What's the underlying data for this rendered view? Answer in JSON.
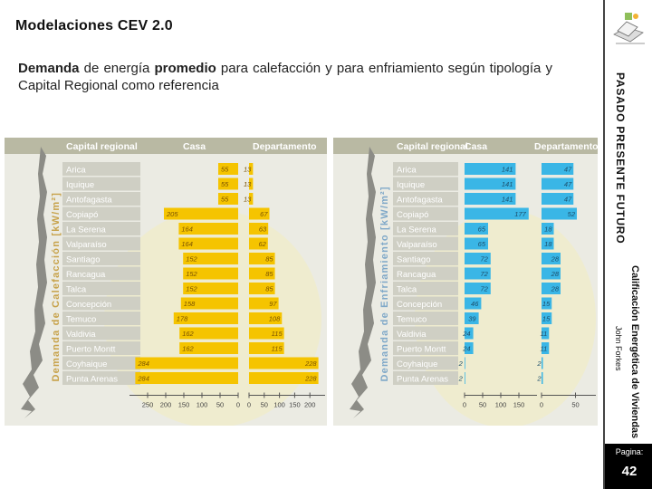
{
  "slide": {
    "title": "Modelaciones CEV 2.0",
    "subtitle_parts": [
      {
        "text": "Demanda",
        "bold": true
      },
      {
        "text": " de energía ",
        "bold": false
      },
      {
        "text": "promedio",
        "bold": true
      },
      {
        "text": " para calefacción y para enfriamiento según tipología  y Capital Regional como referencia",
        "bold": false
      }
    ]
  },
  "sidebar": {
    "nav_items": [
      "PASADO",
      "PRESENTE",
      "FUTURO"
    ],
    "footer_title": "Calificación Energética de Viviendas",
    "author": "John Forkes",
    "page_label": "Pagina:",
    "page_number": "42"
  },
  "colors": {
    "heating_bar": "#f5c400",
    "cooling_bar": "#3ab6e6",
    "header_bg": "#b9b9a3",
    "panel_bg": "#ebebe3",
    "axis_label": "#c7a24a",
    "cooling_axis_label": "#7fa8c8"
  },
  "chart_data": [
    {
      "type": "bar",
      "title": "",
      "ylabel": "Demanda de Calefacción [kW/m²]",
      "column_headers": [
        "Capital regional",
        "Casa",
        "Departamento"
      ],
      "categories": [
        "Arica",
        "Iquique",
        "Antofagasta",
        "Copiapó",
        "La Serena",
        "Valparaíso",
        "Santiago",
        "Rancagua",
        "Talca",
        "Concepción",
        "Temuco",
        "Valdivia",
        "Puerto Montt",
        "Coyhaique",
        "Punta Arenas"
      ],
      "series": [
        {
          "name": "Casa",
          "values": [
            55,
            55,
            55,
            205,
            164,
            164,
            152,
            152,
            152,
            158,
            178,
            162,
            162,
            284,
            284
          ]
        },
        {
          "name": "Departamento",
          "values": [
            13,
            13,
            13,
            67,
            63,
            62,
            85,
            85,
            85,
            97,
            108,
            115,
            115,
            228,
            228
          ]
        }
      ],
      "casa_axis_ticks": [
        250,
        200,
        150,
        100,
        50,
        0
      ],
      "depto_axis_ticks": [
        0,
        50,
        100,
        150,
        200
      ],
      "casa_xlim": [
        300,
        0
      ],
      "depto_xlim": [
        0,
        250
      ]
    },
    {
      "type": "bar",
      "title": "",
      "ylabel": "Demanda de Enfriamiento [kW/m²]",
      "column_headers": [
        "Capital regional",
        "Casa",
        "Departamento"
      ],
      "categories": [
        "Arica",
        "Iquique",
        "Antofagasta",
        "Copiapó",
        "La Serena",
        "Valparaíso",
        "Santiago",
        "Rancagua",
        "Talca",
        "Concepción",
        "Temuco",
        "Valdivia",
        "Puerto Montt",
        "Coyhaique",
        "Punta Arenas"
      ],
      "series": [
        {
          "name": "Casa",
          "values": [
            141,
            141,
            141,
            177,
            65,
            65,
            72,
            72,
            72,
            46,
            39,
            24,
            24,
            2,
            2
          ]
        },
        {
          "name": "Departamento",
          "values": [
            47,
            47,
            47,
            52,
            18,
            18,
            28,
            28,
            28,
            15,
            15,
            11,
            11,
            2,
            2
          ]
        }
      ],
      "casa_axis_ticks": [
        0,
        50,
        100,
        150
      ],
      "depto_axis_ticks": [
        0,
        50
      ],
      "casa_xlim": [
        0,
        200
      ],
      "depto_xlim": [
        0,
        80
      ]
    }
  ]
}
